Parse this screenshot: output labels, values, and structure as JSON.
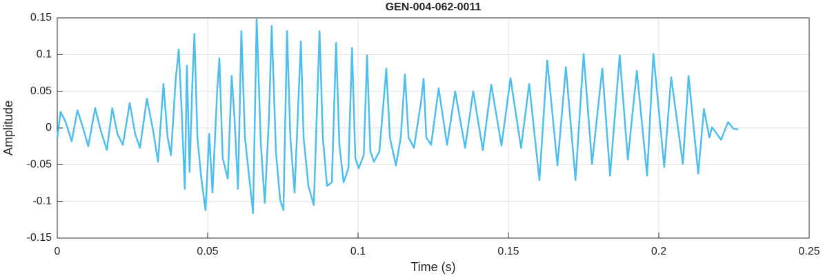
{
  "chart_data": {
    "type": "line",
    "title": "GEN-004-062-0011",
    "x_label": "Time (s)",
    "y_label": "Amplitude",
    "color": "#4dbeee",
    "grid": true,
    "xlim": [
      0,
      0.25
    ],
    "xticks": [
      0,
      0.05,
      0.1,
      0.15,
      0.2,
      0.25
    ],
    "ylim": [
      -0.15,
      0.15
    ],
    "yticks": [
      0.15,
      0.1,
      0.05,
      0,
      -0.05,
      -0.1,
      -0.15
    ],
    "x": [
      0,
      0.0011,
      0.0028,
      0.0048,
      0.0067,
      0.0085,
      0.0103,
      0.0126,
      0.0145,
      0.0165,
      0.0183,
      0.02,
      0.0218,
      0.0241,
      0.0259,
      0.0275,
      0.0298,
      0.0319,
      0.0335,
      0.0353,
      0.0367,
      0.0378,
      0.0394,
      0.0404,
      0.0413,
      0.0424,
      0.0431,
      0.044,
      0.045,
      0.0456,
      0.0466,
      0.0479,
      0.0493,
      0.0505,
      0.0516,
      0.0532,
      0.0539,
      0.055,
      0.0567,
      0.058,
      0.0589,
      0.0601,
      0.0612,
      0.0624,
      0.064,
      0.0651,
      0.0663,
      0.0677,
      0.069,
      0.0704,
      0.0713,
      0.0727,
      0.0741,
      0.0752,
      0.0764,
      0.0775,
      0.0789,
      0.081,
      0.0819,
      0.0835,
      0.0853,
      0.0872,
      0.0883,
      0.0897,
      0.0913,
      0.0927,
      0.0938,
      0.0952,
      0.0968,
      0.098,
      0.0991,
      0.1002,
      0.1019,
      0.103,
      0.1041,
      0.1053,
      0.1071,
      0.1094,
      0.1106,
      0.1126,
      0.1142,
      0.1156,
      0.1168,
      0.1186,
      0.1209,
      0.1218,
      0.1227,
      0.1243,
      0.1268,
      0.1296,
      0.1323,
      0.1356,
      0.1383,
      0.1415,
      0.1443,
      0.1477,
      0.1507,
      0.1542,
      0.1569,
      0.1603,
      0.1629,
      0.1663,
      0.1691,
      0.1723,
      0.175,
      0.1778,
      0.1812,
      0.1838,
      0.187,
      0.1897,
      0.1927,
      0.1961,
      0.1982,
      0.2018,
      0.2041,
      0.208,
      0.2099,
      0.2131,
      0.215,
      0.2168,
      0.2177,
      0.2207,
      0.223,
      0.2248,
      0.2264
    ],
    "values": [
      -0.013,
      0.022,
      0.008,
      -0.018,
      0.024,
      0.001,
      -0.025,
      0.027,
      -0.004,
      -0.03,
      0.027,
      -0.008,
      -0.023,
      0.034,
      -0.008,
      -0.027,
      0.04,
      -0.004,
      -0.046,
      0.06,
      -0.013,
      -0.037,
      0.067,
      0.107,
      0.029,
      -0.083,
      0.085,
      -0.06,
      0.071,
      0.128,
      -0.013,
      -0.069,
      -0.112,
      -0.008,
      -0.088,
      0.053,
      0.095,
      -0.041,
      -0.069,
      0.071,
      0.015,
      -0.083,
      0.132,
      -0.013,
      -0.074,
      -0.116,
      0.148,
      -0.023,
      -0.102,
      0.015,
      0.139,
      -0.032,
      -0.098,
      -0.112,
      0.132,
      -0.013,
      -0.088,
      0.118,
      -0.013,
      -0.079,
      -0.105,
      0.132,
      -0.013,
      -0.079,
      -0.074,
      0.116,
      -0.023,
      -0.074,
      -0.055,
      0.109,
      -0.041,
      -0.055,
      -0.037,
      0.099,
      -0.032,
      -0.046,
      -0.032,
      0.081,
      -0.013,
      -0.051,
      -0.013,
      0.073,
      -0.013,
      -0.027,
      0.034,
      0.067,
      -0.013,
      -0.023,
      0.054,
      -0.023,
      0.05,
      -0.027,
      0.05,
      -0.03,
      0.059,
      -0.024,
      0.068,
      -0.027,
      0.06,
      -0.071,
      0.092,
      -0.051,
      0.083,
      -0.071,
      0.101,
      -0.049,
      0.081,
      -0.065,
      0.099,
      -0.043,
      0.078,
      -0.065,
      0.101,
      -0.053,
      0.069,
      -0.049,
      0.071,
      -0.062,
      0.026,
      -0.013,
      0.001,
      -0.016,
      0.008,
      -0.001,
      -0.002
    ]
  }
}
